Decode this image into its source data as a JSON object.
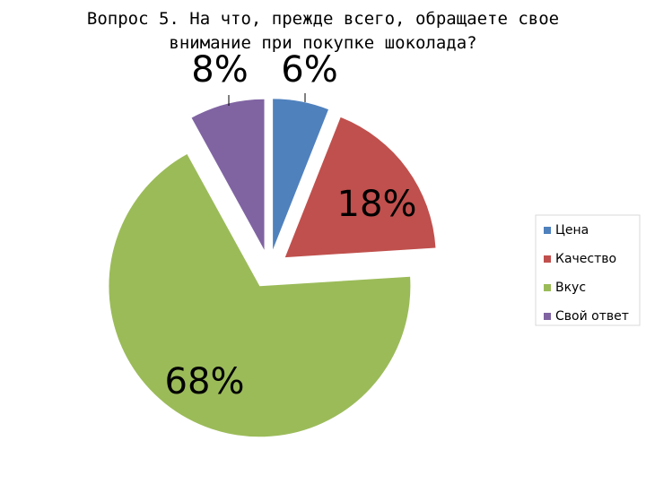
{
  "chart_data": {
    "type": "pie",
    "title": "Вопрос 5. На что, прежде всего, обращаете свое внимание при покупке шоколада?",
    "categories": [
      "Цена",
      "Качество",
      "Вкус",
      "Свой ответ"
    ],
    "values": [
      6,
      18,
      68,
      8
    ],
    "value_labels": [
      "6%",
      "18%",
      "68%",
      "8%"
    ],
    "colors": [
      "#4f81bd",
      "#c0504d",
      "#9bbb59",
      "#8064a2"
    ],
    "legend": "right"
  }
}
